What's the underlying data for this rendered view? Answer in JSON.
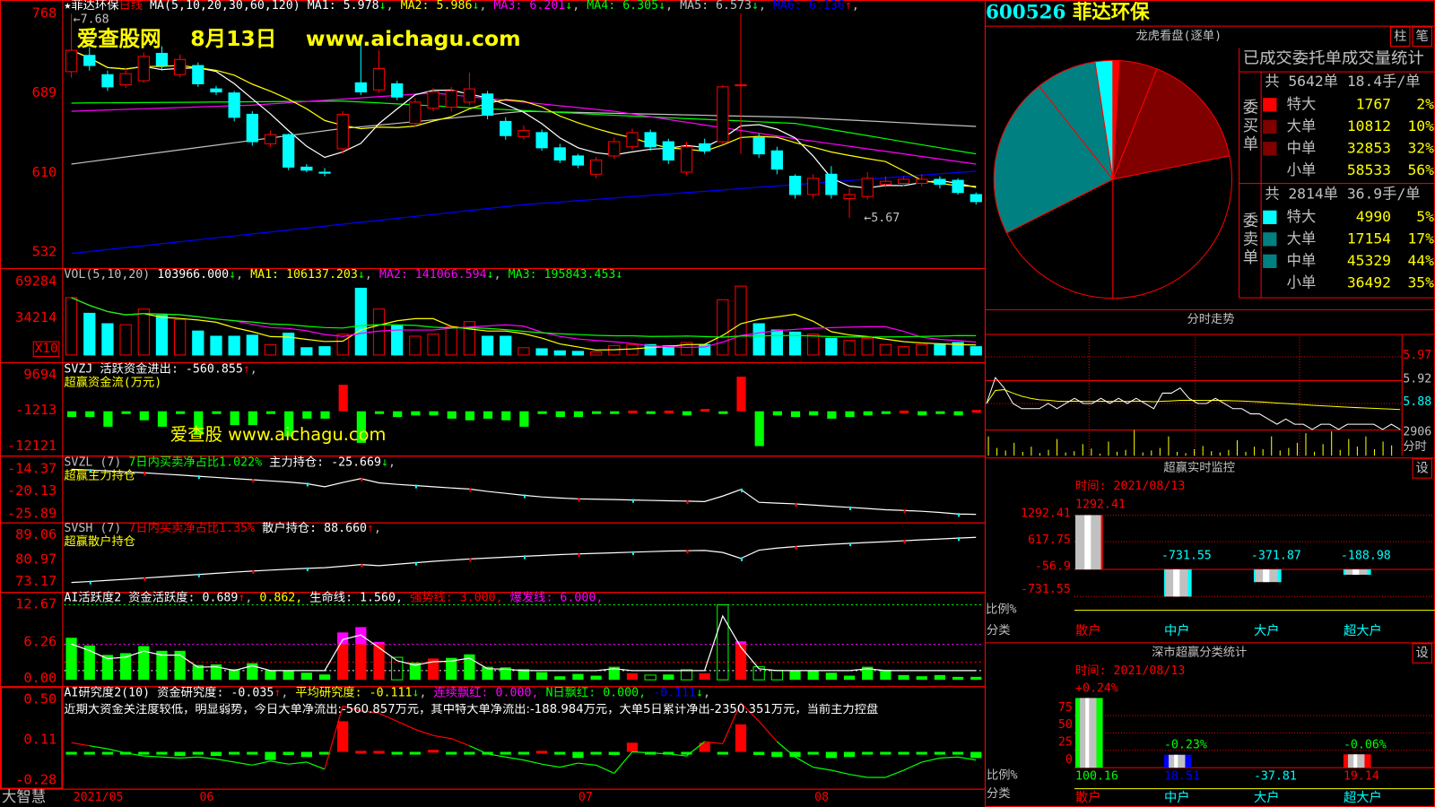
{
  "stock": {
    "code": "600526",
    "name": "菲达环保"
  },
  "main": {
    "star": "★",
    "name": "菲达环保",
    "period": "日线",
    "ma_def": "MA(5,10,20,30,60,120)",
    "ma": [
      {
        "label": "MA1: 5.978",
        "arrow": "↓",
        "color": "#ffffff"
      },
      {
        "label": "MA2: 5.986",
        "arrow": "↓",
        "color": "#ffff00"
      },
      {
        "label": "MA3: 6.201",
        "arrow": "↓",
        "color": "#ff00ff"
      },
      {
        "label": "MA4: 6.305",
        "arrow": "↓",
        "color": "#00ff00"
      },
      {
        "label": "MA5: 6.573",
        "arrow": "↓",
        "color": "#c0c0c0"
      },
      {
        "label": "MA6: 6.136",
        "arrow": "↑",
        "color": "#0000ff"
      }
    ],
    "watermark": "爱查股网    8月13日    www.aichagu.com",
    "high_note": "←7.68",
    "low_note": "←5.67",
    "axis": [
      "768",
      "689",
      "610",
      "532"
    ]
  },
  "vol": {
    "def": "VOL(5,10,20)",
    "v": "103966.000",
    "ma1": "MA1: 106137.203",
    "ma2": "MA2: 141066.594",
    "ma3": "MA3: 195843.453",
    "arrow": "↓",
    "axis": [
      "69284",
      "34214"
    ],
    "unit": "X10"
  },
  "svzj": {
    "head": "SVZJ  活跃资金进出: -560.855",
    "arrow": "↑",
    "sub": "超赢资金流(万元)",
    "watermark": "爱查股 www.aichagu.com",
    "axis": [
      "9694",
      "-1213",
      "-12121"
    ]
  },
  "svzl": {
    "head": "SVZL (7)",
    "ratio": "7日内买卖净占比1.022%",
    "hold": "主力持仓: -25.669",
    "arrow": "↓",
    "sub": "超赢主力持仓",
    "axis": [
      "-14.37",
      "-20.13",
      "-25.89"
    ]
  },
  "svsh": {
    "head": "SVSH (7)",
    "ratio": "7日内买卖净占比1.35%",
    "hold": "散户持仓: 88.660",
    "arrow": "↑",
    "sub": "超赢散户持仓",
    "axis": [
      "89.06",
      "80.97",
      "73.17"
    ]
  },
  "ai1": {
    "head": "AI活跃度2 资金活跃度: 0.689",
    "arrow": "↑",
    "v2": "0.862,",
    "life": "生命线: 1.560,",
    "strong": "强势线: 3.000,",
    "burst": "爆发线: 6.000,",
    "axis": [
      "12.67",
      "6.26",
      "0.00"
    ]
  },
  "ai2": {
    "head": "AI研究度2(10) 资金研究度: -0.035",
    "arrow1": "↑",
    "avg": "平均研究度: -0.111",
    "arrow2": "↓",
    "cont": "连续飘红: 0.000,",
    "nday": "N日飘红: 0.000,",
    "nval": "-0.111",
    "arrow3": "↓",
    "comment": "近期大资金关注度较低，明显弱势，今日大单净流出:-560.857万元，其中特大单净流出:-188.984万元，大单5日累计净出-2350.351万元，当前主力控盘",
    "axis": [
      "0.50",
      "0.11",
      "-0.28"
    ]
  },
  "xaxis": {
    "brand": "大智慧",
    "labels": [
      "2021/05",
      "06",
      "07",
      "08"
    ]
  },
  "lhkp": {
    "title": "龙虎看盘(逐单)",
    "btn1": "柱",
    "btn2": "笔",
    "table_title": "已成交委托单成交量统计",
    "buy": {
      "side": "委买单",
      "total": "共 5642单 18.4手/单",
      "rows": [
        {
          "k": "特大",
          "v": "1767",
          "p": "2%",
          "color": "#ff0000"
        },
        {
          "k": "大单",
          "v": "10812",
          "p": "10%",
          "color": "#800000"
        },
        {
          "k": "中单",
          "v": "32853",
          "p": "32%",
          "color": "#800000"
        },
        {
          "k": "小单",
          "v": "58533",
          "p": "56%",
          "color": "#000000"
        }
      ]
    },
    "sell": {
      "side": "委卖单",
      "total": "共 2814单 36.9手/单",
      "rows": [
        {
          "k": "特大",
          "v": "4990",
          "p": "5%",
          "color": "#00ffff"
        },
        {
          "k": "大单",
          "v": "17154",
          "p": "17%",
          "color": "#008080"
        },
        {
          "k": "中单",
          "v": "45329",
          "p": "44%",
          "color": "#008080"
        },
        {
          "k": "小单",
          "v": "36492",
          "p": "35%",
          "color": "#000000"
        }
      ]
    }
  },
  "fenshi": {
    "title": "分时走势",
    "axis": [
      "5.97",
      "5.92",
      "5.88"
    ],
    "vol_label": "2906",
    "vol_unit": "分时",
    "prices": [
      5.88,
      5.93,
      5.91,
      5.88,
      5.87,
      5.87,
      5.87,
      5.88,
      5.87,
      5.88,
      5.89,
      5.88,
      5.88,
      5.89,
      5.88,
      5.89,
      5.88,
      5.89,
      5.88,
      5.87,
      5.9,
      5.9,
      5.91,
      5.89,
      5.88,
      5.88,
      5.89,
      5.88,
      5.87,
      5.87,
      5.86,
      5.86,
      5.85,
      5.84,
      5.85,
      5.84,
      5.84,
      5.83,
      5.84,
      5.84,
      5.83,
      5.84,
      5.84,
      5.84,
      5.84,
      5.83,
      5.84,
      5.83
    ],
    "volumes": [
      30,
      12,
      8,
      20,
      6,
      14,
      4,
      9,
      26,
      5,
      7,
      18,
      11,
      3,
      22,
      6,
      9,
      40,
      5,
      8,
      12,
      30,
      6,
      4,
      10,
      15,
      7,
      5,
      9,
      24,
      6,
      14,
      10,
      30,
      8,
      12,
      20,
      35,
      6,
      18,
      38,
      9,
      26,
      14,
      30,
      10,
      22,
      16
    ]
  },
  "monitor": {
    "title": "超赢实时监控",
    "time": "时间: 2021/08/13",
    "top": "1292.41",
    "axis": [
      "1292.41",
      "617.75",
      "-56.9",
      "-731.55"
    ],
    "ratio": "比例%",
    "cat": "分类",
    "bars": [
      {
        "k": "散户",
        "v": 1292.41,
        "label": "",
        "color": "#ff0000"
      },
      {
        "k": "中户",
        "v": -731.55,
        "label": "-731.55",
        "color": "#00ffff"
      },
      {
        "k": "大户",
        "v": -371.87,
        "label": "-371.87",
        "color": "#00ffff"
      },
      {
        "k": "超大户",
        "v": -188.98,
        "label": "-188.98",
        "color": "#00ffff"
      }
    ],
    "set": "设"
  },
  "szstat": {
    "title": "深市超赢分类统计",
    "time": "时间: 2021/08/13",
    "axis": [
      "75",
      "50",
      "25",
      "0"
    ],
    "ratio": "比例%",
    "cat": "分类",
    "set": "设",
    "bars": [
      {
        "k": "散户",
        "v": 100.16,
        "pct": "+0.24%",
        "side": "#00ff00",
        "vcolor": "#00ff00",
        "pcolor": "#ff0000"
      },
      {
        "k": "中户",
        "v": 18.51,
        "pct": "-0.23%",
        "side": "#0000ff",
        "vcolor": "#0000ff",
        "pcolor": "#00ff00"
      },
      {
        "k": "大户",
        "v": -37.81,
        "pct": "",
        "side": "#00ffff",
        "vcolor": "#00ffff",
        "pcolor": "#00ff00"
      },
      {
        "k": "超大户",
        "v": 19.14,
        "pct": "-0.06%",
        "side": "#ff0000",
        "vcolor": "#ff0000",
        "pcolor": "#00ff00"
      }
    ]
  },
  "colors": {
    "up": "#ff0000",
    "down": "#00ffff",
    "frame": "#ff0000"
  },
  "chart_data": {
    "type": "candlestick",
    "price_range": [
      5.32,
      7.68
    ],
    "candles": [
      [
        7.11,
        7.32,
        7.68,
        7.05
      ],
      [
        7.27,
        7.17,
        7.35,
        7.12
      ],
      [
        7.08,
        6.96,
        7.12,
        6.92
      ],
      [
        6.98,
        7.09,
        7.15,
        6.95
      ],
      [
        7.02,
        7.26,
        7.3,
        7.0
      ],
      [
        7.29,
        7.17,
        7.36,
        7.12
      ],
      [
        7.08,
        7.23,
        7.28,
        7.05
      ],
      [
        7.17,
        6.99,
        7.2,
        6.96
      ],
      [
        6.94,
        6.91,
        6.97,
        6.88
      ],
      [
        6.9,
        6.66,
        6.92,
        6.62
      ],
      [
        6.69,
        6.42,
        6.72,
        6.38
      ],
      [
        6.4,
        6.49,
        6.53,
        6.37
      ],
      [
        6.49,
        6.17,
        6.5,
        6.14
      ],
      [
        6.17,
        6.14,
        6.2,
        6.12
      ],
      [
        6.12,
        6.11,
        6.16,
        6.08
      ],
      [
        6.35,
        6.69,
        6.72,
        6.3
      ],
      [
        7.0,
        6.91,
        7.45,
        6.88
      ],
      [
        6.93,
        7.14,
        7.32,
        6.9
      ],
      [
        6.99,
        6.86,
        7.02,
        6.83
      ],
      [
        6.6,
        6.81,
        6.85,
        6.57
      ],
      [
        6.75,
        6.91,
        6.95,
        6.72
      ],
      [
        6.76,
        6.92,
        6.96,
        6.72
      ],
      [
        6.81,
        6.94,
        7.1,
        6.78
      ],
      [
        6.89,
        6.68,
        6.92,
        6.64
      ],
      [
        6.62,
        6.48,
        6.66,
        6.44
      ],
      [
        6.47,
        6.53,
        6.58,
        6.44
      ],
      [
        6.51,
        6.36,
        6.54,
        6.33
      ],
      [
        6.36,
        6.24,
        6.4,
        6.21
      ],
      [
        6.28,
        6.19,
        6.3,
        6.16
      ],
      [
        6.1,
        6.24,
        6.27,
        6.06
      ],
      [
        6.28,
        6.42,
        6.46,
        6.25
      ],
      [
        6.37,
        6.51,
        6.55,
        6.34
      ],
      [
        6.51,
        6.37,
        6.54,
        6.33
      ],
      [
        6.42,
        6.24,
        6.45,
        6.2
      ],
      [
        6.12,
        6.37,
        6.42,
        6.09
      ],
      [
        6.4,
        6.33,
        6.45,
        6.3
      ],
      [
        6.42,
        6.96,
        6.98,
        6.4
      ],
      [
        6.98,
        6.98,
        7.68,
        6.3
      ],
      [
        6.46,
        6.3,
        6.5,
        6.26
      ],
      [
        6.33,
        6.15,
        6.37,
        6.1
      ],
      [
        6.08,
        5.9,
        6.1,
        5.86
      ],
      [
        5.9,
        6.06,
        6.1,
        5.86
      ],
      [
        6.1,
        5.9,
        6.18,
        5.86
      ],
      [
        5.86,
        5.9,
        5.96,
        5.67
      ],
      [
        5.88,
        6.06,
        6.12,
        5.85
      ],
      [
        6.0,
        6.03,
        6.08,
        5.97
      ],
      [
        6.01,
        6.05,
        6.08,
        5.98
      ],
      [
        6.01,
        6.05,
        6.1,
        5.98
      ],
      [
        6.05,
        6.0,
        6.08,
        5.96
      ],
      [
        6.04,
        5.92,
        6.06,
        5.9
      ],
      [
        5.9,
        5.83,
        5.92,
        5.8
      ]
    ],
    "ma30": [
      [
        0,
        6.72
      ],
      [
        10,
        6.78
      ],
      [
        20,
        6.9
      ],
      [
        30,
        6.72
      ],
      [
        40,
        6.45
      ],
      [
        50,
        6.2
      ]
    ],
    "ma60": [
      [
        0,
        6.8
      ],
      [
        15,
        6.82
      ],
      [
        30,
        6.68
      ],
      [
        40,
        6.6
      ],
      [
        50,
        6.3
      ]
    ],
    "ma120": [
      [
        0,
        6.2
      ],
      [
        15,
        6.55
      ],
      [
        25,
        6.72
      ],
      [
        40,
        6.66
      ],
      [
        50,
        6.57
      ]
    ],
    "ma_blue": [
      [
        0,
        5.32
      ],
      [
        25,
        5.8
      ],
      [
        50,
        6.13
      ]
    ],
    "volume": [
      55000,
      40000,
      30000,
      29000,
      44000,
      38000,
      34000,
      23000,
      18000,
      18000,
      19000,
      10000,
      21000,
      7000,
      8000,
      20000,
      64000,
      44000,
      28000,
      18000,
      20000,
      27000,
      32000,
      18000,
      18000,
      7000,
      6000,
      4000,
      3500,
      3000,
      9000,
      10000,
      10000,
      9000,
      12000,
      10000,
      53000,
      66000,
      30000,
      24000,
      22000,
      20000,
      16000,
      14000,
      16000,
      10000,
      8000,
      10000,
      10000,
      12000,
      8000
    ],
    "svzj": [
      -3000,
      -3000,
      -6000,
      -2000,
      -4000,
      -6000,
      -1600,
      -8500,
      -2000,
      -5500,
      -5500,
      -2000,
      -9000,
      -3500,
      -3500,
      7000,
      -11000,
      -1400,
      -3000,
      -2500,
      -2500,
      -3500,
      -4000,
      -3500,
      -4000,
      -6000,
      -1800,
      -3000,
      -3000,
      -2000,
      -1500,
      -1000,
      -2000,
      -1000,
      -2500,
      -500,
      -2000,
      9500,
      -12000,
      -2500,
      -3000,
      -2500,
      -3500,
      -3000,
      -2500,
      -2000,
      -1000,
      -2500,
      -2000,
      -2500,
      -800
    ],
    "svzl": [
      -14.1,
      -14.3,
      -14.5,
      -14.8,
      -15.0,
      -15.3,
      -15.6,
      -15.9,
      -16.2,
      -16.5,
      -16.8,
      -17.1,
      -17.4,
      -17.8,
      -18.6,
      -17.5,
      -16.5,
      -17.6,
      -18.0,
      -18.3,
      -18.6,
      -18.9,
      -19.2,
      -19.8,
      -20.3,
      -20.8,
      -21.2,
      -21.5,
      -21.7,
      -21.8,
      -21.9,
      -22.0,
      -22.1,
      -22.2,
      -22.3,
      -22.4,
      -21.0,
      -19.3,
      -22.6,
      -22.8,
      -23.0,
      -23.3,
      -23.6,
      -23.9,
      -24.2,
      -24.5,
      -24.7,
      -24.9,
      -25.2,
      -25.6,
      -25.7
    ],
    "svsh": [
      73.3,
      73.6,
      74.0,
      74.4,
      74.8,
      75.2,
      75.6,
      76.0,
      76.4,
      76.8,
      77.2,
      77.5,
      77.8,
      78.1,
      78.3,
      78.8,
      79.4,
      79.0,
      79.5,
      80.0,
      80.5,
      80.9,
      81.3,
      81.6,
      81.9,
      82.2,
      82.5,
      82.8,
      83.0,
      83.2,
      83.4,
      83.6,
      83.8,
      84.0,
      84.1,
      84.2,
      83.5,
      81.5,
      84.3,
      85.0,
      85.5,
      85.9,
      86.3,
      86.6,
      86.9,
      87.2,
      87.5,
      87.8,
      88.1,
      88.4,
      88.66
    ],
    "ai1": [
      7.1,
      5.8,
      4.2,
      4.5,
      5.7,
      4.9,
      4.9,
      2.5,
      2.6,
      1.8,
      2.8,
      1.6,
      1.6,
      1.2,
      0.9,
      8.0,
      8.9,
      6.4,
      3.8,
      2.9,
      3.6,
      3.7,
      4.3,
      2.2,
      2.1,
      1.8,
      1.3,
      0.6,
      1.0,
      0.7,
      2.2,
      1.1,
      0.8,
      0.9,
      1.7,
      1.1,
      12.67,
      6.5,
      2.2,
      1.6,
      1.6,
      1.6,
      1.2,
      0.7,
      2.2,
      1.7,
      0.8,
      0.6,
      0.8,
      0.5,
      0.5
    ],
    "ai1_kind": "gggggggggggggggrrrhgrggggggggggrhghrhrhhgggggggggggg",
    "ai1_levels": {
      "life": 1.56,
      "strong": 3.0,
      "burst": 6.0,
      "top": 12.67
    },
    "ai2_bars": [
      -0.02,
      -0.01,
      -0.01,
      -0.01,
      -0.01,
      -0.005,
      -0.04,
      -0.01,
      -0.04,
      -0.01,
      -0.02,
      -0.08,
      -0.03,
      -0.05,
      -0.02,
      0.3,
      0.01,
      0.01,
      -0.01,
      -0.01,
      0.02,
      -0.01,
      -0.01,
      -0.01,
      -0.01,
      -0.02,
      0.01,
      -0.02,
      -0.06,
      -0.01,
      -0.03,
      0.09,
      -0.005,
      -0.01,
      -0.01,
      0.09,
      -0.01,
      0.27,
      -0.03,
      -0.05,
      -0.05,
      -0.01,
      -0.06,
      -0.05,
      -0.01,
      -0.02,
      -0.01,
      -0.005,
      -0.01,
      -0.02,
      -0.06
    ],
    "ai2_line": [
      0.09,
      0.06,
      0.03,
      -0.01,
      -0.04,
      -0.05,
      -0.06,
      -0.05,
      -0.07,
      -0.1,
      -0.13,
      -0.09,
      -0.12,
      -0.1,
      -0.17,
      0.45,
      0.4,
      0.38,
      0.3,
      0.22,
      0.16,
      0.13,
      0.06,
      -0.02,
      -0.05,
      -0.08,
      -0.12,
      -0.15,
      -0.11,
      -0.13,
      -0.21,
      0.0,
      -0.01,
      -0.02,
      -0.04,
      0.1,
      0.08,
      0.48,
      0.3,
      0.1,
      -0.05,
      -0.15,
      -0.18,
      -0.22,
      -0.25,
      -0.25,
      -0.18,
      -0.1,
      -0.06,
      -0.05,
      -0.08
    ]
  }
}
